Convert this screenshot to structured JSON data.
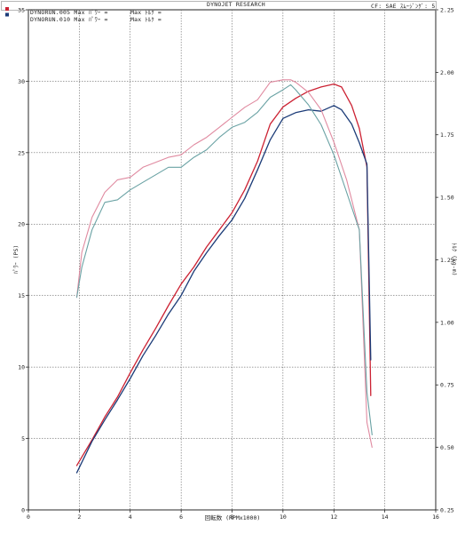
{
  "header": {
    "title": "DYNOJET RESEARCH",
    "correction": "CF: SAE  ｽﾑｰｼﾞﾝｸﾞ: 5",
    "run1": "DYNORUN.005 Max ﾊﾟﾜｰ =",
    "run1_torque": "Max ﾄﾙｸ =",
    "run2": "DYNORUN.010 Max ﾊﾟﾜｰ =",
    "run2_torque": "Max ﾄﾙｸ ="
  },
  "chart_data": {
    "type": "line",
    "title": "DYNOJET RESEARCH",
    "xlabel": "回転数 (RPMx1000)",
    "ylabel": "ﾊﾟﾜｰ (PS)",
    "y2label": "ﾄﾙｸ (kg-m)",
    "xlim": [
      0,
      16
    ],
    "ylim": [
      0,
      35
    ],
    "y2lim": [
      0.25,
      2.25
    ],
    "grid": true,
    "x_ticks": [
      "0",
      "2",
      "4",
      "6",
      "8",
      "10",
      "12",
      "14",
      "16"
    ],
    "y_ticks": [
      "0",
      "5",
      "10",
      "15",
      "20",
      "25",
      "30",
      "35"
    ],
    "y2_ticks": [
      "0.25",
      "0.50",
      "0.75",
      "1.00",
      "1.25",
      "1.50",
      "1.75",
      "2.00",
      "2.25"
    ],
    "legend_placement": "top-left",
    "series": [
      {
        "name": "DYNORUN.005",
        "quantity": "power",
        "axis": "left",
        "color": "#cc2233",
        "x": [
          1.9,
          2.5,
          3.0,
          3.5,
          4.0,
          4.5,
          5.0,
          5.5,
          6.0,
          6.5,
          7.0,
          7.5,
          8.0,
          8.5,
          9.0,
          9.5,
          10.0,
          10.5,
          11.0,
          11.5,
          12.0,
          12.3,
          12.7,
          13.0,
          13.3,
          13.45
        ],
        "values": [
          3.1,
          4.9,
          6.5,
          7.9,
          9.6,
          11.2,
          12.7,
          14.3,
          15.8,
          17.0,
          18.4,
          19.6,
          20.8,
          22.4,
          24.4,
          27.0,
          28.2,
          28.8,
          29.3,
          29.6,
          29.8,
          29.6,
          28.3,
          26.7,
          24.0,
          8.0
        ]
      },
      {
        "name": "DYNORUN.010",
        "quantity": "power",
        "axis": "left",
        "color": "#1c3c78",
        "x": [
          1.9,
          2.5,
          3.0,
          3.5,
          4.0,
          4.5,
          5.0,
          5.5,
          6.0,
          6.5,
          7.0,
          7.5,
          8.0,
          8.5,
          9.0,
          9.5,
          10.0,
          10.5,
          11.0,
          11.5,
          12.0,
          12.3,
          12.7,
          13.0,
          13.3,
          13.45
        ],
        "values": [
          2.6,
          4.8,
          6.3,
          7.7,
          9.2,
          10.8,
          12.2,
          13.7,
          15.0,
          16.7,
          18.0,
          19.2,
          20.3,
          21.8,
          23.8,
          25.9,
          27.4,
          27.8,
          28.0,
          27.9,
          28.3,
          28.0,
          27.0,
          25.7,
          24.2,
          10.5
        ]
      },
      {
        "name": "DYNORUN.005",
        "quantity": "torque",
        "axis": "right",
        "color": "#e08aa0",
        "x": [
          1.9,
          2.1,
          2.5,
          3.0,
          3.5,
          4.0,
          4.5,
          5.0,
          5.5,
          6.0,
          6.5,
          7.0,
          7.5,
          8.0,
          8.5,
          9.0,
          9.5,
          10.0,
          10.3,
          10.5,
          11.0,
          11.5,
          12.0,
          12.5,
          13.0,
          13.3,
          13.5
        ],
        "values": [
          1.1,
          1.28,
          1.42,
          1.52,
          1.57,
          1.58,
          1.62,
          1.64,
          1.66,
          1.67,
          1.71,
          1.74,
          1.78,
          1.82,
          1.86,
          1.89,
          1.96,
          1.97,
          1.97,
          1.96,
          1.92,
          1.85,
          1.72,
          1.57,
          1.37,
          0.6,
          0.5
        ]
      },
      {
        "name": "DYNORUN.010",
        "quantity": "torque",
        "axis": "right",
        "color": "#6aa2a4",
        "x": [
          1.9,
          2.1,
          2.5,
          3.0,
          3.5,
          4.0,
          4.5,
          5.0,
          5.5,
          6.0,
          6.5,
          7.0,
          7.5,
          8.0,
          8.5,
          9.0,
          9.5,
          10.0,
          10.3,
          10.5,
          11.0,
          11.5,
          12.0,
          12.5,
          13.0,
          13.3,
          13.5
        ],
        "values": [
          1.1,
          1.22,
          1.37,
          1.48,
          1.49,
          1.53,
          1.56,
          1.59,
          1.62,
          1.62,
          1.66,
          1.69,
          1.74,
          1.78,
          1.8,
          1.84,
          1.9,
          1.93,
          1.95,
          1.93,
          1.87,
          1.79,
          1.67,
          1.52,
          1.37,
          0.72,
          0.55
        ]
      }
    ]
  }
}
